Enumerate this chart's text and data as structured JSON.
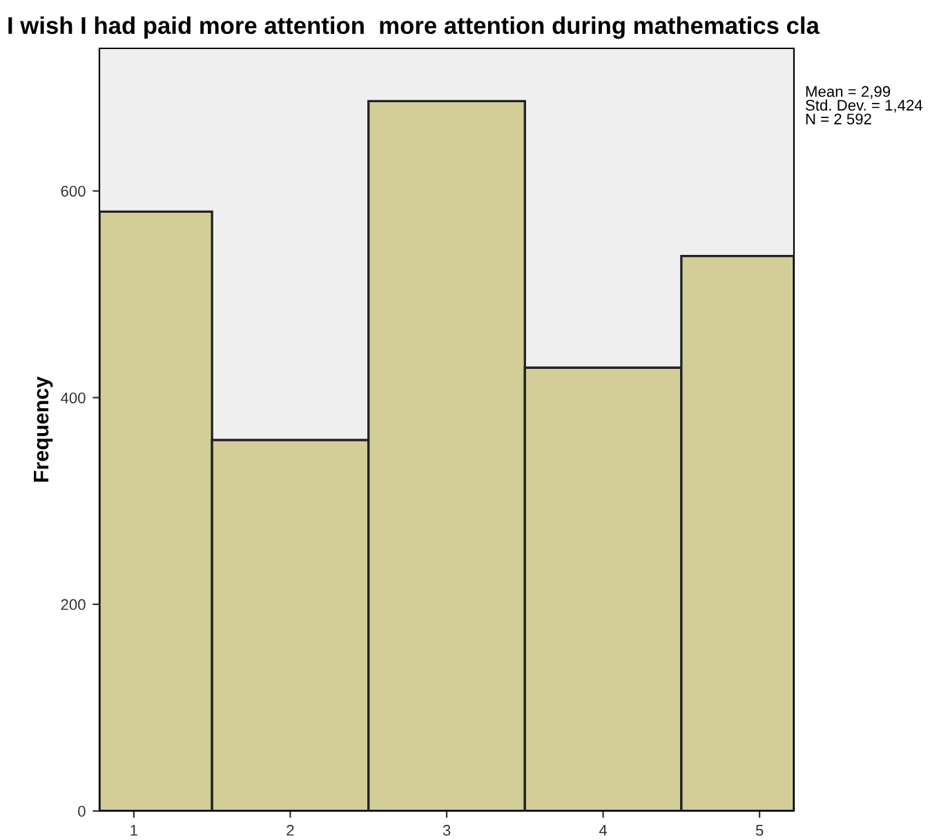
{
  "chart_data": {
    "type": "histogram",
    "title": "I wish I had paid more attention  more attention during mathematics cla",
    "ylabel": "Frequency",
    "bins": [
      0.78,
      1.5,
      2.5,
      3.5,
      4.5,
      5.22
    ],
    "values": [
      580,
      359,
      687,
      429,
      537
    ],
    "color": "#d3ce97",
    "xlim": [
      0.78,
      5.22
    ],
    "xticks": [
      1,
      2,
      3,
      4,
      5
    ],
    "ylim": [
      0,
      738
    ],
    "yticks": [
      0,
      200,
      400,
      600
    ],
    "annotations": [
      "Mean = 2,99\nStd. Dev. = 1,424\nN = 2 592"
    ],
    "grid": false
  }
}
